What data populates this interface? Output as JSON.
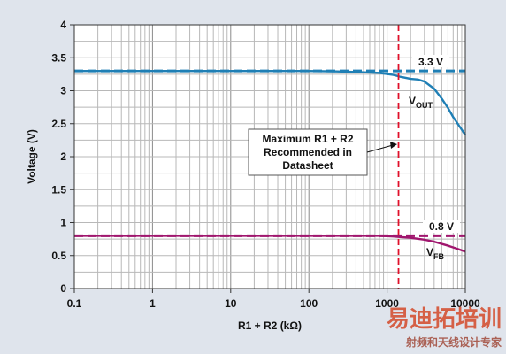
{
  "chart_data": {
    "type": "line",
    "xlabel": "R1 + R2 (kΩ)",
    "ylabel": "Voltage (V)",
    "xscale": "log",
    "xlim": [
      0.1,
      10000
    ],
    "ylim": [
      0,
      4
    ],
    "x_ticks": [
      "0.1",
      "1",
      "10",
      "100",
      "1000",
      "10000"
    ],
    "y_ticks": [
      "0",
      "0.5",
      "1",
      "1.5",
      "2",
      "2.5",
      "3",
      "3.5",
      "4"
    ],
    "grid": true,
    "series": [
      {
        "name_main": "V",
        "name_sub": "OUT",
        "color": "#1f7fb5",
        "x": [
          0.1,
          1,
          10,
          100,
          300,
          800,
          1200,
          1500,
          2000,
          2500,
          3000,
          4000,
          5000,
          6000,
          7000,
          8000,
          10000
        ],
        "y": [
          3.3,
          3.3,
          3.3,
          3.3,
          3.29,
          3.27,
          3.24,
          3.21,
          3.18,
          3.17,
          3.14,
          3.03,
          2.88,
          2.74,
          2.6,
          2.5,
          2.33
        ]
      },
      {
        "name_main": "V",
        "name_sub": "FB",
        "color": "#a0166e",
        "x": [
          0.1,
          1,
          10,
          100,
          300,
          800,
          1200,
          1500,
          2000,
          3000,
          4000,
          6000,
          8000,
          10000
        ],
        "y": [
          0.8,
          0.8,
          0.8,
          0.8,
          0.8,
          0.8,
          0.79,
          0.78,
          0.77,
          0.74,
          0.71,
          0.65,
          0.6,
          0.56
        ]
      }
    ],
    "reference_lines": [
      {
        "orientation": "horizontal",
        "value": 3.3,
        "label": "3.3 V",
        "color": "#1f7fb5",
        "style": "dashed"
      },
      {
        "orientation": "horizontal",
        "value": 0.8,
        "label": "0.8 V",
        "color": "#a0166e",
        "style": "dashed"
      },
      {
        "orientation": "vertical",
        "value": 1400,
        "color": "#e0102a",
        "style": "dashed"
      }
    ],
    "annotation": {
      "lines": [
        "Maximum R1 + R2",
        "Recommended in",
        "Datasheet"
      ]
    }
  },
  "watermark": {
    "main": "易迪拓培训",
    "sub": "射频和天线设计专家"
  }
}
